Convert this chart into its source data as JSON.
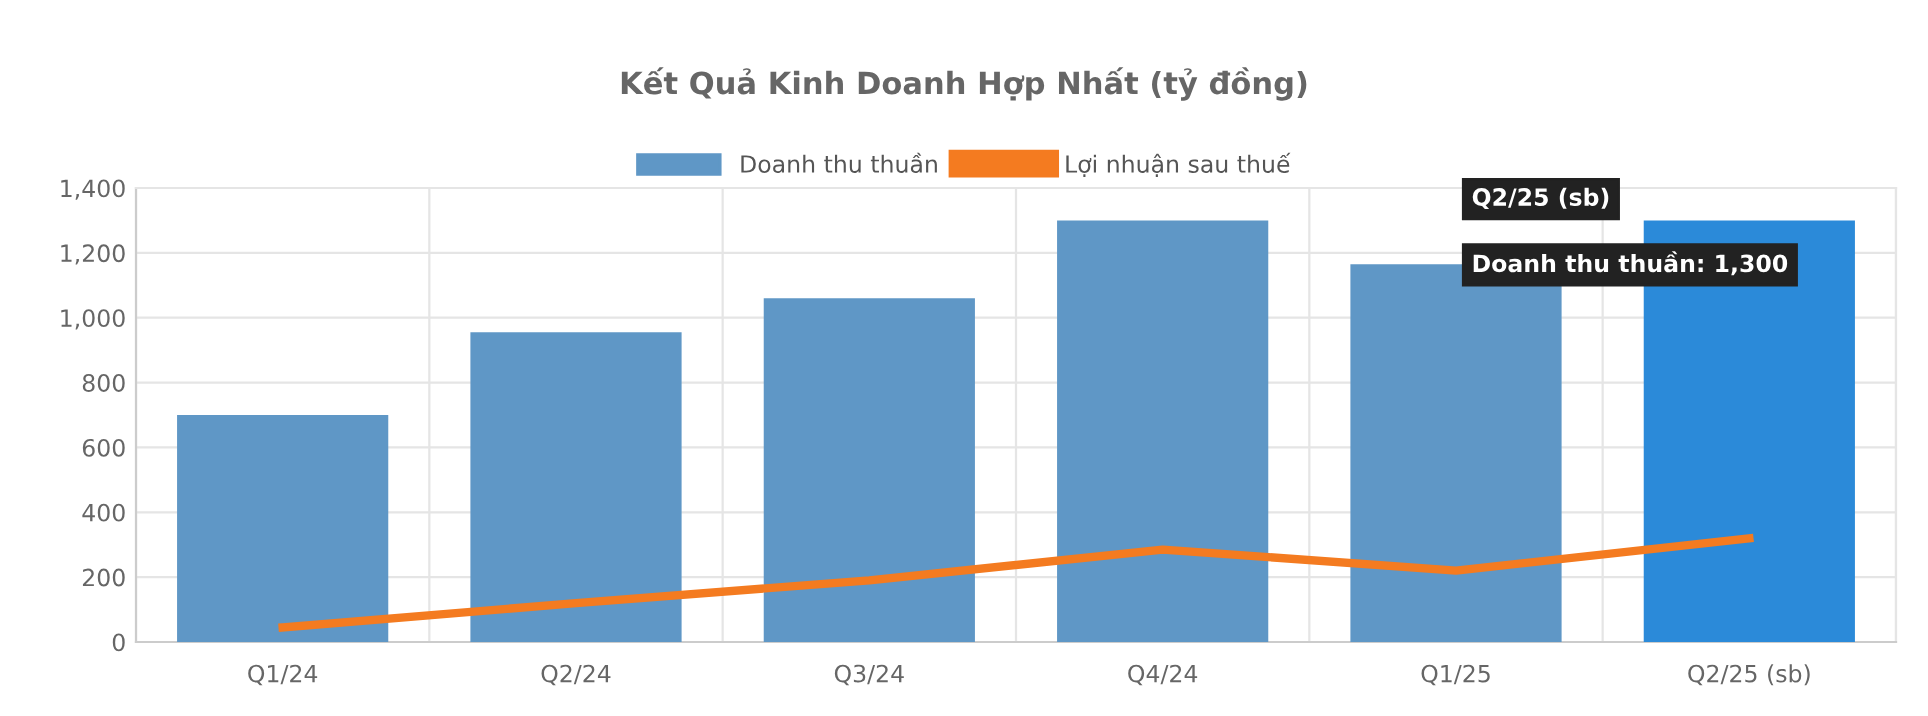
{
  "chart_data": {
    "type": "bar",
    "title": "Kết Quả Kinh Doanh Hợp Nhất (tỷ đồng)",
    "categories": [
      "Q1/24",
      "Q2/24",
      "Q3/24",
      "Q4/24",
      "Q1/25",
      "Q2/25 (sb)"
    ],
    "series": [
      {
        "name": "Doanh thu thuần",
        "color": "#5f97c6",
        "colors": [
          "#5f97c6",
          "#5f97c6",
          "#5f97c6",
          "#5f97c6",
          "#5f97c6",
          "#2b8ad9"
        ],
        "values": [
          700,
          955,
          1060,
          1300,
          1165,
          1300
        ]
      },
      {
        "name": "Lợi nhuận sau thuế",
        "type": "line",
        "color": "#f47b20",
        "values": [
          45,
          120,
          190,
          285,
          220,
          320
        ]
      }
    ],
    "ylim": [
      0,
      1400
    ],
    "yticks": [
      0,
      200,
      400,
      600,
      800,
      {
        "value": 1000,
        "label": "1,000"
      },
      {
        "value": 1200,
        "label": "1,200"
      },
      {
        "value": 1400,
        "label": "1,400"
      }
    ],
    "grid": true,
    "legend": "top",
    "marker": "none",
    "line_style": "solid",
    "annotations": [
      "Q2/25 (sb)",
      {
        "text": "Doanh thu thuần: 1,300",
        "x": "Q2/25 (sb)",
        "y": 1300
      }
    ]
  }
}
